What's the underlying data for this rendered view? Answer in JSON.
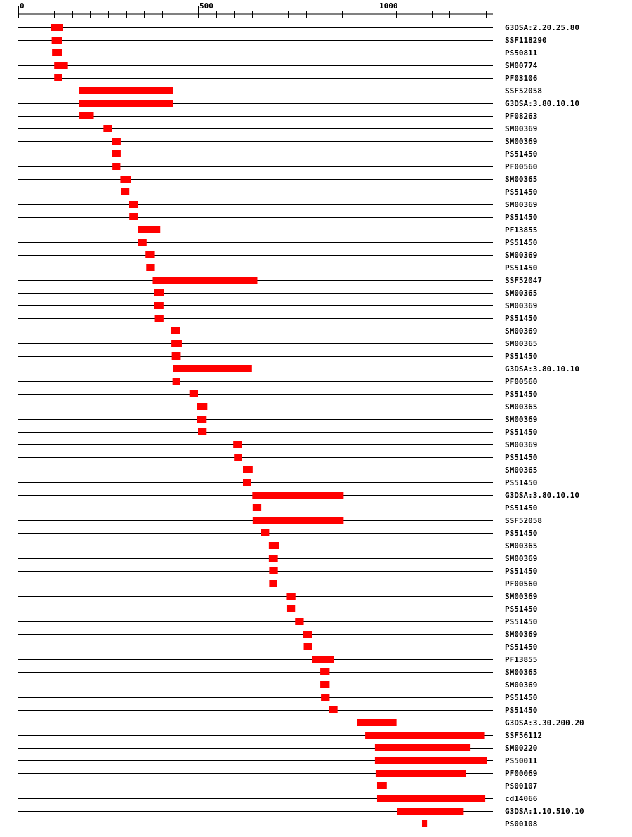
{
  "chart_data": {
    "type": "domain-map",
    "axis": {
      "range": [
        0,
        1320
      ],
      "tick_labels": [
        "0",
        "500",
        "1000"
      ],
      "tick_label_values": [
        0,
        500,
        1000
      ],
      "minor_tick_step": 50
    },
    "bar_color": "#ff0000",
    "rows": [
      {
        "label": "G3DSA:2.20.25.80",
        "start": 90,
        "end": 125
      },
      {
        "label": "SSF118290",
        "start": 93,
        "end": 122
      },
      {
        "label": "PS50811",
        "start": 94,
        "end": 123
      },
      {
        "label": "SM00774",
        "start": 100,
        "end": 138
      },
      {
        "label": "PF03106",
        "start": 100,
        "end": 122
      },
      {
        "label": "SSF52058",
        "start": 168,
        "end": 430
      },
      {
        "label": "G3DSA:3.80.10.10",
        "start": 168,
        "end": 430
      },
      {
        "label": "PF08263",
        "start": 170,
        "end": 210
      },
      {
        "label": "SM00369",
        "start": 237,
        "end": 261
      },
      {
        "label": "SM00369",
        "start": 260,
        "end": 285
      },
      {
        "label": "PS51450",
        "start": 261,
        "end": 285
      },
      {
        "label": "PF00560",
        "start": 262,
        "end": 284
      },
      {
        "label": "SM00365",
        "start": 284,
        "end": 314
      },
      {
        "label": "PS51450",
        "start": 286,
        "end": 309
      },
      {
        "label": "SM00369",
        "start": 307,
        "end": 334
      },
      {
        "label": "PS51450",
        "start": 309,
        "end": 332
      },
      {
        "label": "PF13855",
        "start": 333,
        "end": 395
      },
      {
        "label": "PS51450",
        "start": 333,
        "end": 357
      },
      {
        "label": "SM00369",
        "start": 354,
        "end": 380
      },
      {
        "label": "PS51450",
        "start": 356,
        "end": 380
      },
      {
        "label": "SSF52047",
        "start": 374,
        "end": 665
      },
      {
        "label": "SM00365",
        "start": 378,
        "end": 405
      },
      {
        "label": "SM00369",
        "start": 378,
        "end": 404
      },
      {
        "label": "PS51450",
        "start": 380,
        "end": 404
      },
      {
        "label": "SM00369",
        "start": 424,
        "end": 451
      },
      {
        "label": "SM00365",
        "start": 426,
        "end": 455
      },
      {
        "label": "PS51450",
        "start": 427,
        "end": 452
      },
      {
        "label": "G3DSA:3.80.10.10",
        "start": 430,
        "end": 650
      },
      {
        "label": "PF00560",
        "start": 429,
        "end": 451
      },
      {
        "label": "PS51450",
        "start": 476,
        "end": 500
      },
      {
        "label": "SM00365",
        "start": 498,
        "end": 526
      },
      {
        "label": "SM00369",
        "start": 498,
        "end": 524
      },
      {
        "label": "PS51450",
        "start": 500,
        "end": 524
      },
      {
        "label": "SM00369",
        "start": 598,
        "end": 622
      },
      {
        "label": "PS51450",
        "start": 600,
        "end": 622
      },
      {
        "label": "SM00365",
        "start": 625,
        "end": 652
      },
      {
        "label": "PS51450",
        "start": 625,
        "end": 648
      },
      {
        "label": "G3DSA:3.80.10.10",
        "start": 651,
        "end": 905
      },
      {
        "label": "PS51450",
        "start": 652,
        "end": 676
      },
      {
        "label": "SSF52058",
        "start": 652,
        "end": 905
      },
      {
        "label": "PS51450",
        "start": 674,
        "end": 698
      },
      {
        "label": "SM00365",
        "start": 697,
        "end": 726
      },
      {
        "label": "SM00369",
        "start": 697,
        "end": 722
      },
      {
        "label": "PS51450",
        "start": 698,
        "end": 722
      },
      {
        "label": "PF00560",
        "start": 698,
        "end": 720
      },
      {
        "label": "SM00369",
        "start": 745,
        "end": 771
      },
      {
        "label": "PS51450",
        "start": 746,
        "end": 770
      },
      {
        "label": "PS51450",
        "start": 770,
        "end": 794
      },
      {
        "label": "SM00369",
        "start": 793,
        "end": 818
      },
      {
        "label": "PS51450",
        "start": 794,
        "end": 818
      },
      {
        "label": "PF13855",
        "start": 817,
        "end": 878
      },
      {
        "label": "SM00365",
        "start": 840,
        "end": 866
      },
      {
        "label": "SM00369",
        "start": 840,
        "end": 866
      },
      {
        "label": "PS51450",
        "start": 842,
        "end": 866
      },
      {
        "label": "PS51450",
        "start": 865,
        "end": 888
      },
      {
        "label": "G3DSA:3.30.200.20",
        "start": 942,
        "end": 1052
      },
      {
        "label": "SSF56112",
        "start": 965,
        "end": 1296
      },
      {
        "label": "SM00220",
        "start": 992,
        "end": 1258
      },
      {
        "label": "PS50011",
        "start": 992,
        "end": 1304
      },
      {
        "label": "PF00069",
        "start": 994,
        "end": 1245
      },
      {
        "label": "PS00107",
        "start": 998,
        "end": 1025
      },
      {
        "label": "cd14066",
        "start": 998,
        "end": 1299
      },
      {
        "label": "G3DSA:1.10.510.10",
        "start": 1053,
        "end": 1239
      },
      {
        "label": "PS00108",
        "start": 1123,
        "end": 1137
      }
    ]
  }
}
